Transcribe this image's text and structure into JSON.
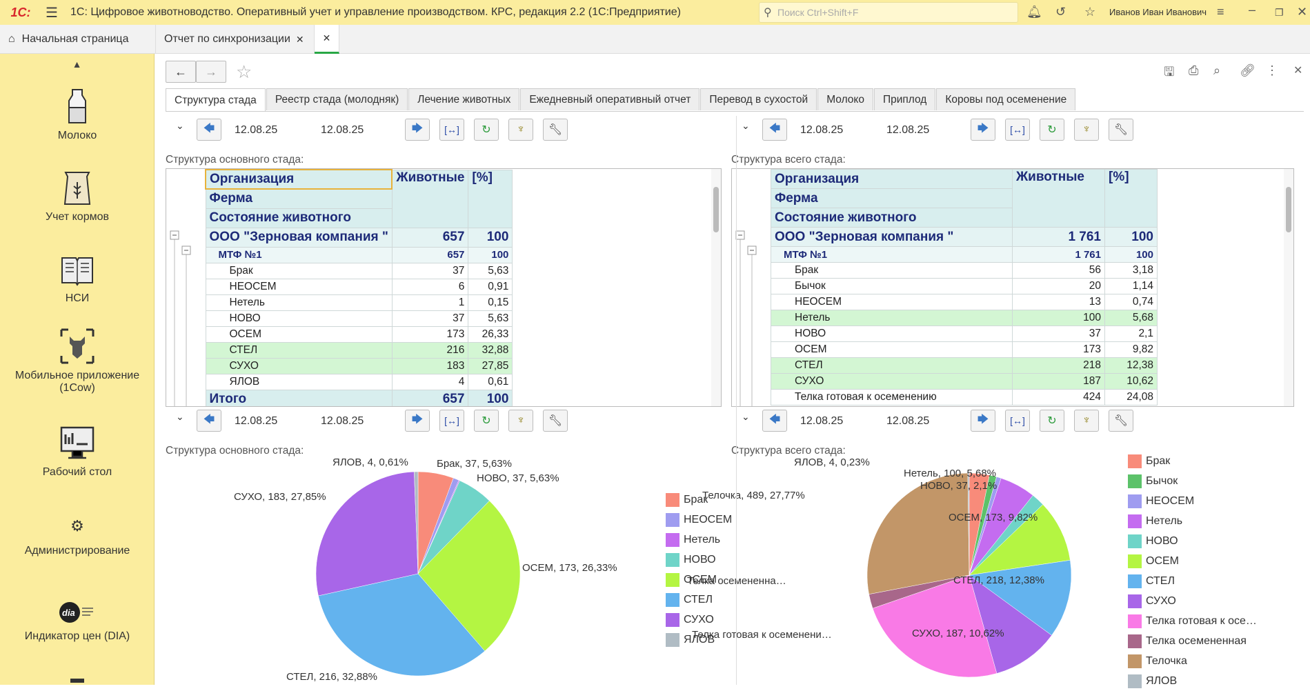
{
  "app": {
    "title": "1С: Цифровое животноводство. Оперативный учет и управление производством. КРС, редакция 2.2  (1С:Предприятие)",
    "search_placeholder": "Поиск Ctrl+Shift+F",
    "user": "Иванов Иван Иванович"
  },
  "window_tabs": [
    {
      "label": "Начальная страница"
    },
    {
      "label": "Отчет по синхронизации"
    },
    {
      "label": ""
    }
  ],
  "sidebar": {
    "items": [
      {
        "label": "Молоко",
        "icon": "milk-bottle-icon"
      },
      {
        "label": "Учет кормов",
        "icon": "feed-bag-icon"
      },
      {
        "label": "НСИ",
        "icon": "book-icon"
      },
      {
        "label": "Мобильное приложение (1Cow)",
        "icon": "cow-scan-icon"
      },
      {
        "label": "Рабочий стол",
        "icon": "desktop-icon"
      },
      {
        "label": "Администрирование",
        "icon": "gear-icon"
      },
      {
        "label": "Индикатор цен (DIA)",
        "icon": "dia-logo-icon"
      }
    ]
  },
  "report_tabs": [
    "Структура стада",
    "Реестр стада (молодняк)",
    "Лечение животных",
    "Ежедневный оперативный отчет",
    "Перевод в сухостой",
    "Молоко",
    "Приплод",
    "Коровы под осеменение"
  ],
  "dates": {
    "from": "12.08.25",
    "to": "12.08.25"
  },
  "headers": {
    "org": "Организация",
    "farm": "Ферма",
    "state": "Состояние животного",
    "animals": "Животные",
    "pct": "[%]"
  },
  "left_table": {
    "title": "Структура основного стада:",
    "org": {
      "name": "ООО \"Зерновая компания \"",
      "animals": "657",
      "pct": "100"
    },
    "farm": {
      "name": "МТФ №1",
      "animals": "657",
      "pct": "100"
    },
    "rows": [
      {
        "name": "Брак",
        "animals": "37",
        "pct": "5,63"
      },
      {
        "name": "НЕОСЕМ",
        "animals": "6",
        "pct": "0,91"
      },
      {
        "name": "Нетель",
        "animals": "1",
        "pct": "0,15"
      },
      {
        "name": "НОВО",
        "animals": "37",
        "pct": "5,63"
      },
      {
        "name": "ОСЕМ",
        "animals": "173",
        "pct": "26,33"
      },
      {
        "name": "СТЕЛ",
        "animals": "216",
        "pct": "32,88"
      },
      {
        "name": "СУХО",
        "animals": "183",
        "pct": "27,85"
      },
      {
        "name": "ЯЛОВ",
        "animals": "4",
        "pct": "0,61"
      }
    ],
    "total": {
      "name": "Итого",
      "animals": "657",
      "pct": "100"
    }
  },
  "right_table": {
    "title": "Структура всего стада:",
    "org": {
      "name": "ООО \"Зерновая компания \"",
      "animals": "1 761",
      "pct": "100"
    },
    "farm": {
      "name": "МТФ №1",
      "animals": "1 761",
      "pct": "100"
    },
    "rows": [
      {
        "name": "Брак",
        "animals": "56",
        "pct": "3,18"
      },
      {
        "name": "Бычок",
        "animals": "20",
        "pct": "1,14"
      },
      {
        "name": "НЕОСЕМ",
        "animals": "13",
        "pct": "0,74"
      },
      {
        "name": "Нетель",
        "animals": "100",
        "pct": "5,68"
      },
      {
        "name": "НОВО",
        "animals": "37",
        "pct": "2,1"
      },
      {
        "name": "ОСЕМ",
        "animals": "173",
        "pct": "9,82"
      },
      {
        "name": "СТЕЛ",
        "animals": "218",
        "pct": "12,38"
      },
      {
        "name": "СУХО",
        "animals": "187",
        "pct": "10,62"
      },
      {
        "name": "Телка готовая к осеменению",
        "animals": "424",
        "pct": "24,08"
      }
    ]
  },
  "chart_data": [
    {
      "type": "pie",
      "title": "Структура основного стада:",
      "categories": [
        "Брак",
        "НЕОСЕМ",
        "Нетель",
        "НОВО",
        "ОСЕМ",
        "СТЕЛ",
        "СУХО",
        "ЯЛОВ"
      ],
      "values": [
        37,
        6,
        1,
        37,
        173,
        216,
        183,
        4
      ],
      "colors": [
        "#f88b7a",
        "#9f9cf0",
        "#c46cf0",
        "#6fd4c8",
        "#b4f542",
        "#63b3ee",
        "#a866e8",
        "#b0bcc4"
      ],
      "slice_labels": [
        {
          "text": "Брак, 37, 5,63%"
        },
        {
          "text": "НОВО, 37, 5,63%"
        },
        {
          "text": "ОСЕМ, 173, 26,33%"
        },
        {
          "text": "СТЕЛ, 216, 32,88%"
        },
        {
          "text": "СУХО, 183, 27,85%"
        },
        {
          "text": "ЯЛОВ, 4, 0,61%"
        }
      ],
      "legend": "right"
    },
    {
      "type": "pie",
      "title": "Структура всего стада:",
      "categories": [
        "Брак",
        "Бычок",
        "НЕОСЕМ",
        "Нетель",
        "НОВО",
        "ОСЕМ",
        "СТЕЛ",
        "СУХО",
        "Телка готовая к осеменению",
        "Телка осемененная",
        "Телочка",
        "ЯЛОВ"
      ],
      "legend_labels": [
        "Брак",
        "Бычок",
        "НЕОСЕМ",
        "Нетель",
        "НОВО",
        "ОСЕМ",
        "СТЕЛ",
        "СУХО",
        "Телка готовая к осе…",
        "Телка осемененная",
        "Телочка",
        "ЯЛОВ"
      ],
      "values": [
        56,
        20,
        13,
        100,
        37,
        173,
        218,
        187,
        424,
        40,
        489,
        4
      ],
      "colors": [
        "#f88b7a",
        "#5cc26a",
        "#9f9cf0",
        "#c46cf0",
        "#6fd4c8",
        "#b4f542",
        "#63b3ee",
        "#a866e8",
        "#f97ae6",
        "#a8678a",
        "#c29668",
        "#b0bcc4"
      ],
      "slice_labels": [
        {
          "text": "Нетель, 100, 5,68%"
        },
        {
          "text": "НОВО, 37, 2,1%"
        },
        {
          "text": "ОСЕМ, 173, 9,82%"
        },
        {
          "text": "СТЕЛ, 218, 12,38%"
        },
        {
          "text": "СУХО, 187, 10,62%"
        },
        {
          "text": "Телка готовая к осеменени…"
        },
        {
          "text": "Телка осемененна…"
        },
        {
          "text": "Телочка, 489, 27,77%"
        },
        {
          "text": "ЯЛОВ, 4, 0,23%"
        }
      ],
      "legend": "right"
    }
  ]
}
